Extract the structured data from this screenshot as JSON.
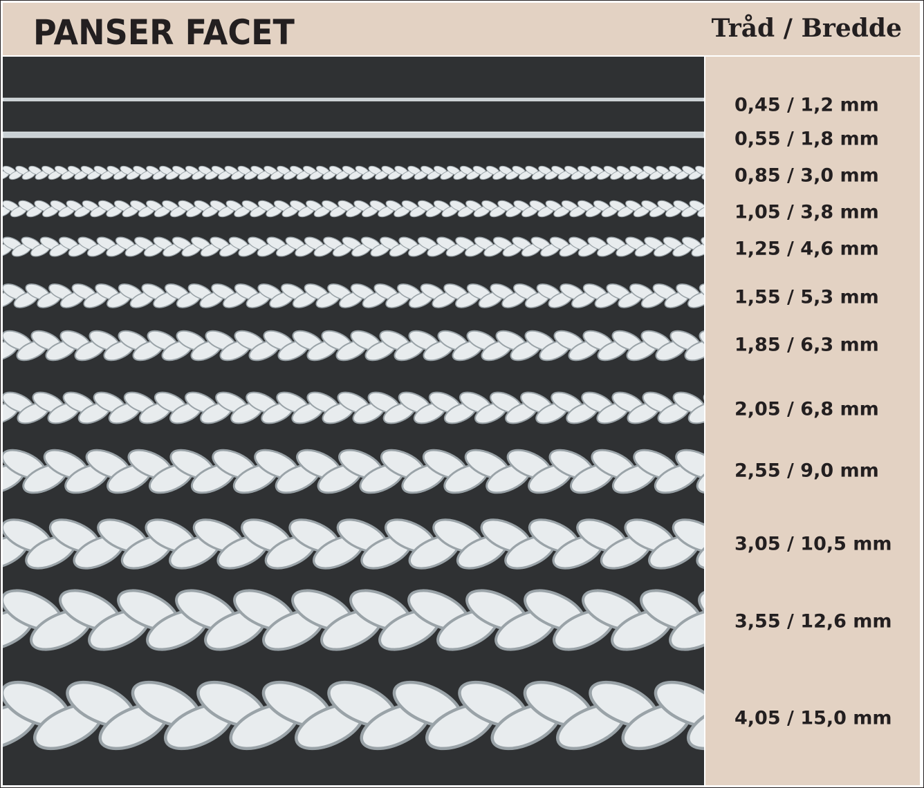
{
  "header": {
    "title": "PANSER FACET",
    "column_heading": "Tråd / Bredde"
  },
  "colors": {
    "panel": "#e3d2c3",
    "photo_background": "#2f3133",
    "text": "#231f20",
    "chain": "#e8ecee"
  },
  "chains": [
    {
      "size": "0,45 / 1,2 mm"
    },
    {
      "size": "0,55 / 1,8 mm"
    },
    {
      "size": "0,85 / 3,0 mm"
    },
    {
      "size": "1,05 / 3,8 mm"
    },
    {
      "size": "1,25 / 4,6 mm"
    },
    {
      "size": "1,55 / 5,3 mm"
    },
    {
      "size": "1,85 / 6,3 mm"
    },
    {
      "size": "2,05 / 6,8 mm"
    },
    {
      "size": "2,55 / 9,0 mm"
    },
    {
      "size": "3,05 / 10,5 mm"
    },
    {
      "size": "3,55 / 12,6 mm"
    },
    {
      "size": "4,05 / 15,0 mm"
    }
  ]
}
